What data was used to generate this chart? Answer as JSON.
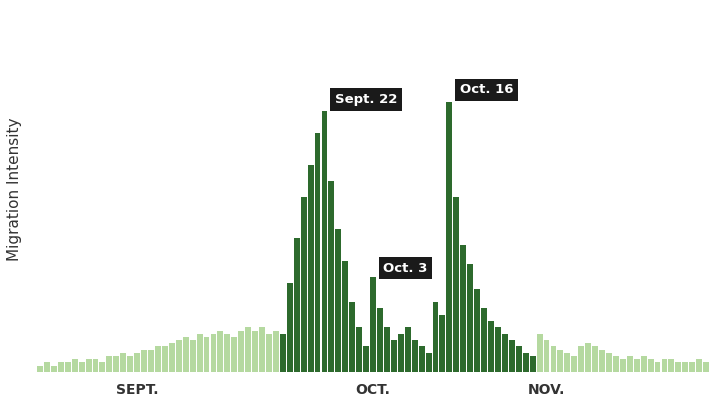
{
  "title": "",
  "ylabel": "Migration Intensity",
  "xlabel": "",
  "background_color": "#ffffff",
  "light_green": "#b5d9a0",
  "dark_green": "#2d6a2d",
  "ylabel_fontsize": 11,
  "xtick_labels": [
    "SEPT.",
    "OCT.",
    "NOV."
  ],
  "values": [
    2,
    3,
    2,
    3,
    3,
    4,
    3,
    4,
    4,
    3,
    5,
    5,
    6,
    5,
    6,
    7,
    7,
    8,
    8,
    9,
    10,
    11,
    10,
    12,
    11,
    12,
    13,
    12,
    11,
    13,
    14,
    13,
    14,
    12,
    13,
    12,
    28,
    42,
    55,
    65,
    75,
    82,
    60,
    45,
    35,
    22,
    14,
    8,
    30,
    20,
    14,
    10,
    12,
    14,
    10,
    8,
    6,
    22,
    18,
    85,
    55,
    40,
    34,
    26,
    20,
    16,
    14,
    12,
    10,
    8,
    6,
    5,
    12,
    10,
    8,
    7,
    6,
    5,
    8,
    9,
    8,
    7,
    6,
    5,
    4,
    5,
    4,
    5,
    4,
    3,
    4,
    4,
    3,
    3,
    3,
    4,
    3
  ],
  "colors": [
    "light",
    "light",
    "light",
    "light",
    "light",
    "light",
    "light",
    "light",
    "light",
    "light",
    "light",
    "light",
    "light",
    "light",
    "light",
    "light",
    "light",
    "light",
    "light",
    "light",
    "light",
    "light",
    "light",
    "light",
    "light",
    "light",
    "light",
    "light",
    "light",
    "light",
    "light",
    "light",
    "light",
    "light",
    "light",
    "dark",
    "dark",
    "dark",
    "dark",
    "dark",
    "dark",
    "dark",
    "dark",
    "dark",
    "dark",
    "dark",
    "dark",
    "dark",
    "dark",
    "dark",
    "dark",
    "dark",
    "dark",
    "dark",
    "dark",
    "dark",
    "dark",
    "dark",
    "dark",
    "dark",
    "dark",
    "dark",
    "dark",
    "dark",
    "dark",
    "dark",
    "dark",
    "dark",
    "dark",
    "dark",
    "dark",
    "dark",
    "light",
    "light",
    "light",
    "light",
    "light",
    "light",
    "light",
    "light",
    "light",
    "light",
    "light",
    "light",
    "light",
    "light",
    "light",
    "light",
    "light",
    "light",
    "light",
    "light",
    "light",
    "light",
    "light",
    "light",
    "light"
  ],
  "ann_sept22_idx": 41,
  "ann_oct3_idx": 48,
  "ann_oct16_idx": 59,
  "sept_tick_idx": 14,
  "oct_tick_idx": 48,
  "nov_tick_idx": 73
}
